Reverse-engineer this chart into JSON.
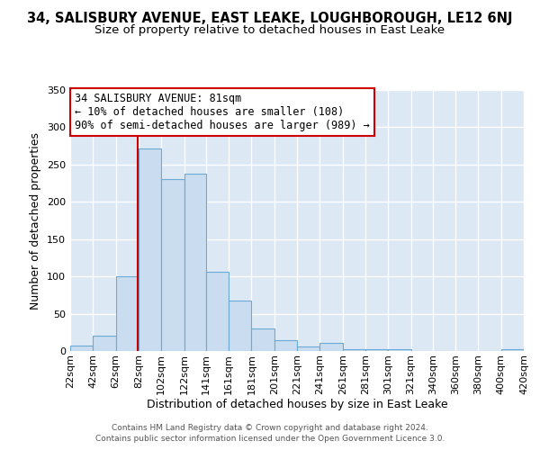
{
  "title": "34, SALISBURY AVENUE, EAST LEAKE, LOUGHBOROUGH, LE12 6NJ",
  "subtitle": "Size of property relative to detached houses in East Leake",
  "xlabel": "Distribution of detached houses by size in East Leake",
  "ylabel": "Number of detached properties",
  "bin_labels": [
    "22sqm",
    "42sqm",
    "62sqm",
    "82sqm",
    "102sqm",
    "122sqm",
    "141sqm",
    "161sqm",
    "181sqm",
    "201sqm",
    "221sqm",
    "241sqm",
    "261sqm",
    "281sqm",
    "301sqm",
    "321sqm",
    "340sqm",
    "360sqm",
    "380sqm",
    "400sqm",
    "420sqm"
  ],
  "bar_heights": [
    7,
    20,
    100,
    272,
    231,
    238,
    106,
    68,
    30,
    15,
    6,
    11,
    3,
    2,
    2,
    0,
    0,
    0,
    0,
    2
  ],
  "bin_edges": [
    22,
    42,
    62,
    82,
    102,
    122,
    141,
    161,
    181,
    201,
    221,
    241,
    261,
    281,
    301,
    321,
    340,
    360,
    380,
    400,
    420
  ],
  "bar_color": "#c9dcf0",
  "bar_edge_color": "#6aaad4",
  "vline_x": 81,
  "vline_color": "#cc0000",
  "annotation_line1": "34 SALISBURY AVENUE: 81sqm",
  "annotation_line2": "← 10% of detached houses are smaller (108)",
  "annotation_line3": "90% of semi-detached houses are larger (989) →",
  "annotation_box_color": "#ffffff",
  "annotation_box_edge_color": "#cc0000",
  "ylim": [
    0,
    350
  ],
  "yticks": [
    0,
    50,
    100,
    150,
    200,
    250,
    300,
    350
  ],
  "plot_bg_color": "#dde8f5",
  "fig_bg_color": "#ffffff",
  "grid_color": "#ffffff",
  "footer1": "Contains HM Land Registry data © Crown copyright and database right 2024.",
  "footer2": "Contains public sector information licensed under the Open Government Licence 3.0.",
  "title_fontsize": 10.5,
  "subtitle_fontsize": 9.5,
  "annotation_fontsize": 8.5,
  "axis_label_fontsize": 9,
  "tick_fontsize": 8
}
